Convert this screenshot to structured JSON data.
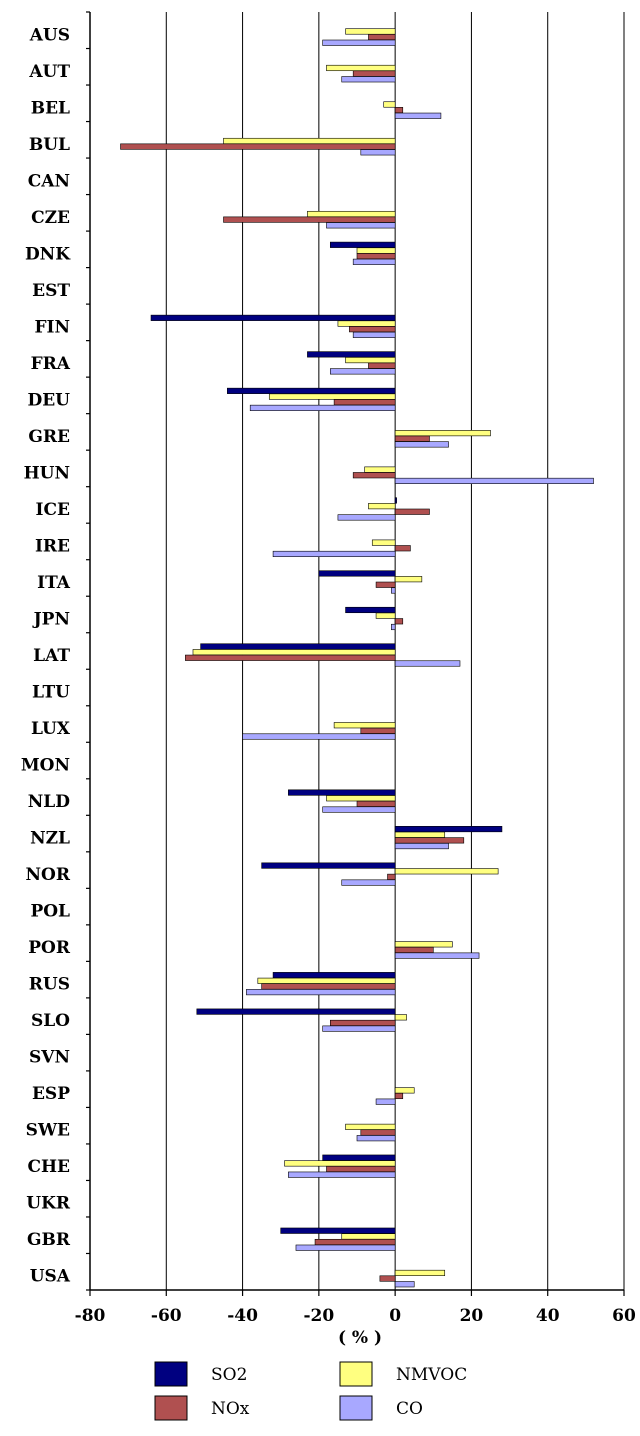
{
  "chart_data": {
    "type": "bar",
    "orientation": "horizontal",
    "categories": [
      "AUS",
      "AUT",
      "BEL",
      "BUL",
      "CAN",
      "CZE",
      "DNK",
      "EST",
      "FIN",
      "FRA",
      "DEU",
      "GRE",
      "HUN",
      "ICE",
      "IRE",
      "ITA",
      "JPN",
      "LAT",
      "LTU",
      "LUX",
      "MON",
      "NLD",
      "NZL",
      "NOR",
      "POL",
      "POR",
      "RUS",
      "SLO",
      "SVN",
      "ESP",
      "SWE",
      "CHE",
      "UKR",
      "GBR",
      "USA"
    ],
    "series": [
      {
        "name": "SO2",
        "color": "#000080",
        "values": [
          null,
          null,
          null,
          null,
          null,
          null,
          -17,
          null,
          -64,
          -23,
          -44,
          null,
          null,
          0,
          null,
          -20,
          -13,
          -51,
          null,
          null,
          null,
          -28,
          28,
          -35,
          null,
          null,
          -32,
          -52,
          null,
          null,
          null,
          -19,
          null,
          -30,
          null
        ]
      },
      {
        "name": "NMVOC",
        "color": "#ffff80",
        "values": [
          -13,
          -18,
          -3,
          -45,
          null,
          -23,
          -10,
          null,
          -15,
          -13,
          -33,
          25,
          -8,
          -7,
          -6,
          7,
          -5,
          -53,
          null,
          -16,
          null,
          -18,
          13,
          27,
          null,
          15,
          -36,
          3,
          null,
          5,
          -13,
          -29,
          null,
          -14,
          13
        ]
      },
      {
        "name": "NOx",
        "color": "#b05050",
        "values": [
          -7,
          -11,
          2,
          -72,
          null,
          -45,
          -10,
          null,
          -12,
          -7,
          -16,
          9,
          -11,
          9,
          4,
          -5,
          2,
          -55,
          null,
          -9,
          null,
          -10,
          18,
          -2,
          null,
          10,
          -35,
          -17,
          null,
          2,
          -9,
          -18,
          null,
          -21,
          -4
        ]
      },
      {
        "name": "CO",
        "color": "#a8a8ff",
        "values": [
          -19,
          -14,
          12,
          -9,
          null,
          -18,
          -11,
          null,
          -11,
          -17,
          -38,
          14,
          52,
          -15,
          -32,
          -1,
          -1,
          17,
          null,
          -40,
          null,
          -19,
          14,
          -14,
          null,
          22,
          -39,
          -19,
          null,
          -5,
          -10,
          -28,
          null,
          -26,
          5
        ]
      }
    ],
    "xlabel": "( % )",
    "xlim": [
      -80,
      60
    ],
    "xticks": [
      -80,
      -60,
      -40,
      -20,
      0,
      20,
      40,
      60
    ],
    "xtick_labels": [
      "-80",
      "-60",
      "-40",
      "-20",
      "0",
      "20",
      "40",
      "60"
    ],
    "grid": "vertical",
    "legend": {
      "position": "bottom",
      "entries": [
        {
          "label": "SO2",
          "color": "#000080"
        },
        {
          "label": "NMVOC",
          "color": "#ffff80"
        },
        {
          "label": "NOx",
          "color": "#b05050"
        },
        {
          "label": "CO",
          "color": "#a8a8ff"
        }
      ]
    }
  }
}
